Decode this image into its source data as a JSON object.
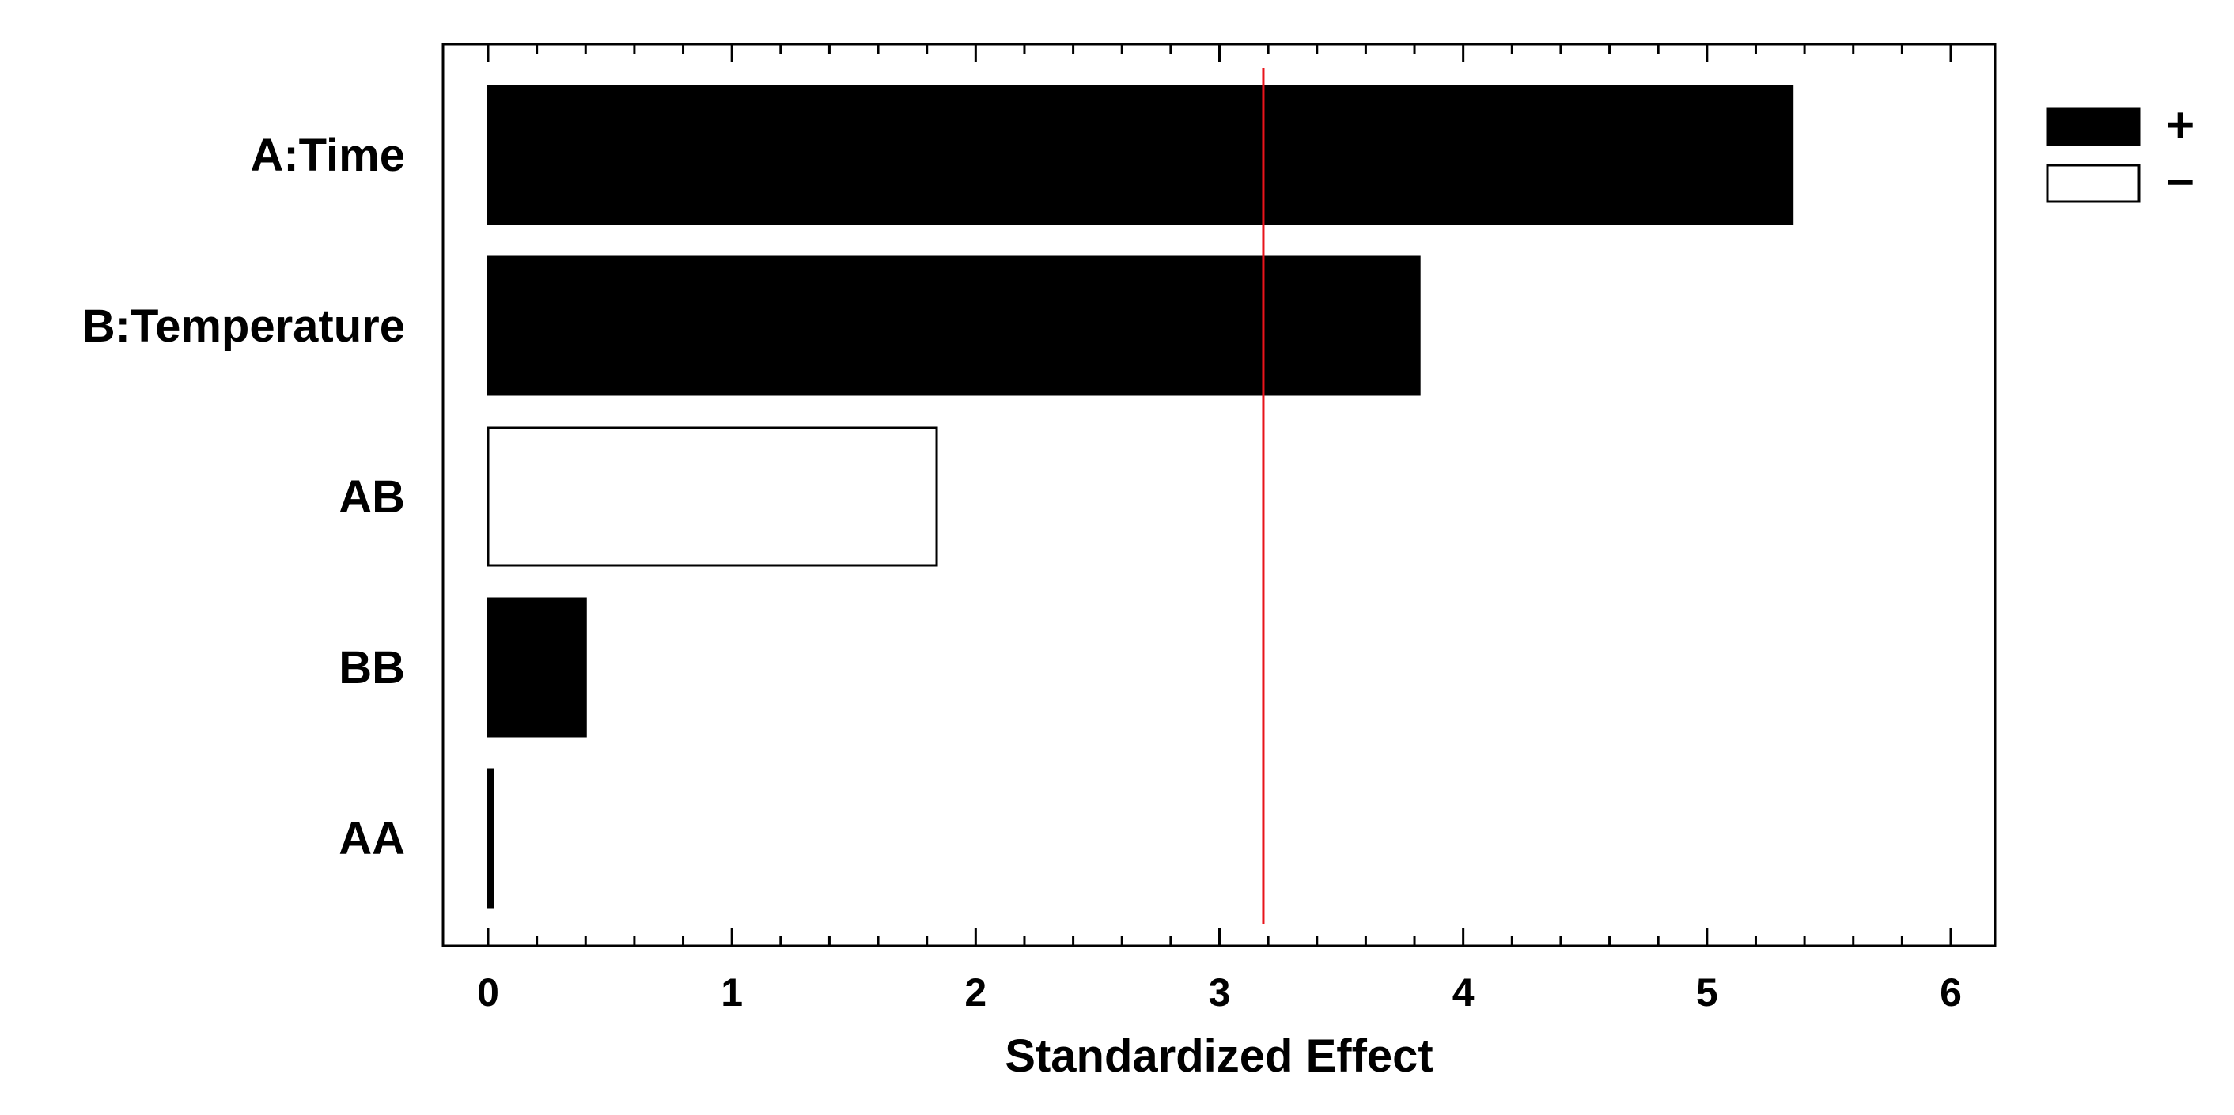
{
  "chart_data": {
    "type": "bar",
    "orientation": "horizontal",
    "title": "",
    "xlabel": "Standardized Effect",
    "ylabel": "",
    "categories": [
      "A:Time",
      "B:Temperature",
      "AB",
      "BB",
      "AA"
    ],
    "values": [
      5.35,
      3.82,
      1.84,
      0.4,
      0.02
    ],
    "signs": [
      "+",
      "+",
      "-",
      "+",
      "+"
    ],
    "xlim": [
      0,
      6
    ],
    "x_ticks": [
      "0",
      "1",
      "2",
      "3",
      "4",
      "5",
      "6"
    ],
    "reference_line": 3.18,
    "reference_line_color": "#e8141b",
    "legend": [
      {
        "symbol": "+",
        "fill": "#000000"
      },
      {
        "symbol": "−",
        "fill": "#ffffff"
      }
    ],
    "legend_position": "top-right",
    "grid": false
  }
}
